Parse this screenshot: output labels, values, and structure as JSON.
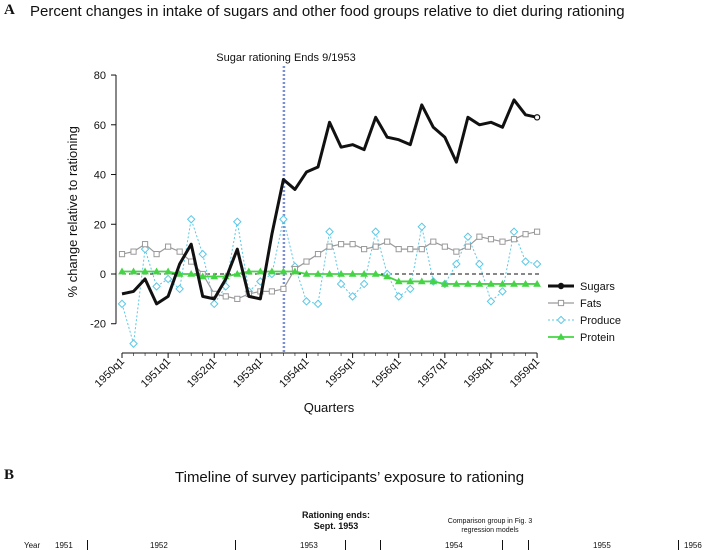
{
  "panelA": {
    "label": "A",
    "title": "Percent changes in intake of sugars and other food groups relative to diet during rationing"
  },
  "panelB": {
    "label": "B",
    "title": "Timeline of survey participants’ exposure to rationing",
    "rationing_label_1": "Rationing ends:",
    "rationing_label_2": "Sept. 1953",
    "comparison_1": "Comparison group in Fig. 3",
    "comparison_2": "regression models",
    "year_label": "Year",
    "years": [
      "1951",
      "1952",
      "1953",
      "1954",
      "1955",
      "1956"
    ]
  },
  "colors": {
    "sugars": "#111111",
    "fats": "#9a9a9a",
    "produce": "#5bc8e6",
    "protein": "#44d444",
    "vline": "#7a8fd6"
  },
  "chart_data": {
    "type": "line",
    "xlabel": "Quarters",
    "ylabel": "% change relative to rationing",
    "ylim": [
      -30,
      80
    ],
    "yticks": [
      -20,
      0,
      20,
      40,
      60,
      80
    ],
    "xticks": [
      "1950q1",
      "1951q1",
      "1952q1",
      "1953q1",
      "1954q1",
      "1955q1",
      "1956q1",
      "1957q1",
      "1958q1",
      "1959q1"
    ],
    "annotation": "Sugar rationing Ends 9/1953",
    "annotation_quarter_index": 14,
    "zero_line": "dashed",
    "legend": "right",
    "n_points": 37,
    "series": [
      {
        "name": "Sugars",
        "values": [
          -8,
          -7,
          -2,
          -12,
          -9,
          4,
          12,
          -9,
          -10,
          -2,
          10,
          -9,
          -10,
          16,
          38,
          34,
          41,
          43,
          61,
          51,
          52,
          50,
          63,
          55,
          54,
          52,
          68,
          59,
          55,
          45,
          63,
          60,
          61,
          59,
          70,
          64,
          63
        ]
      },
      {
        "name": "Fats",
        "values": [
          8,
          9,
          12,
          8,
          11,
          9,
          5,
          0,
          -8,
          -9,
          -10,
          -8,
          -7,
          -7,
          -6,
          2,
          5,
          8,
          11,
          12,
          12,
          10,
          11,
          13,
          10,
          10,
          10,
          13,
          11,
          9,
          11,
          15,
          14,
          13,
          14,
          16,
          17
        ]
      },
      {
        "name": "Produce",
        "values": [
          -12,
          -28,
          10,
          -5,
          -2,
          -6,
          22,
          8,
          -12,
          -5,
          21,
          -7,
          -3,
          0,
          22,
          3,
          -11,
          -12,
          17,
          -4,
          -9,
          -4,
          17,
          0,
          -9,
          -6,
          19,
          -3,
          -4,
          4,
          15,
          4,
          -11,
          -7,
          17,
          5,
          4
        ]
      },
      {
        "name": "Protein",
        "values": [
          1,
          1,
          1,
          1,
          1,
          0,
          0,
          -1,
          -1,
          -1,
          0,
          1,
          1,
          1,
          1,
          1,
          0,
          0,
          0,
          0,
          0,
          0,
          0,
          -1,
          -3,
          -3,
          -3,
          -3,
          -4,
          -4,
          -4,
          -4,
          -4,
          -4,
          -4,
          -4,
          -4
        ]
      }
    ]
  }
}
